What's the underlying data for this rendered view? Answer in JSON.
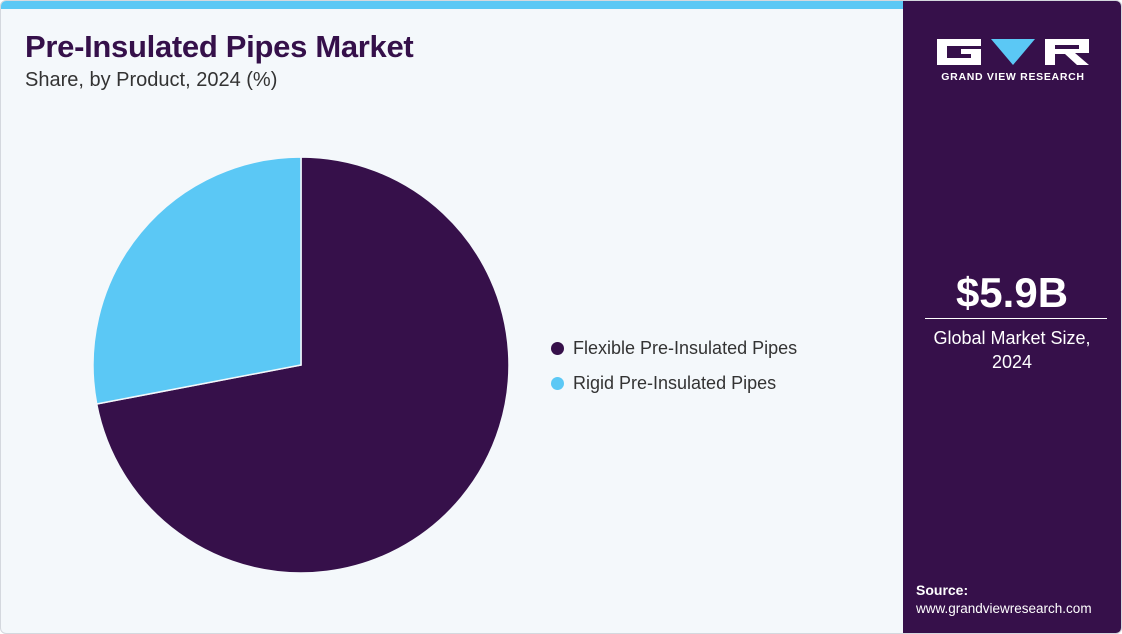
{
  "header": {
    "title": "Pre-Insulated Pipes Market",
    "subtitle": "Share, by Product, 2024 (%)"
  },
  "colors": {
    "accent_bar": "#5bc8f5",
    "sidebar_bg": "#36104a",
    "title": "#35104a"
  },
  "chart_data": {
    "type": "pie",
    "title": "Pre-Insulated Pipes Market",
    "subtitle": "Share, by Product, 2024 (%)",
    "legend_position": "right",
    "slices": [
      {
        "label": "Flexible Pre-Insulated Pipes",
        "value": 72,
        "color": "#36104a"
      },
      {
        "label": "Rigid Pre-Insulated Pipes",
        "value": 28,
        "color": "#5bc8f5"
      }
    ]
  },
  "sidebar": {
    "logo_text": "GRAND VIEW RESEARCH",
    "logo_icon": "gvr-logo-icon",
    "stat_value": "$5.9B",
    "stat_label_line1": "Global Market Size,",
    "stat_label_line2": "2024",
    "source_label": "Source:",
    "source_url": "www.grandviewresearch.com"
  }
}
